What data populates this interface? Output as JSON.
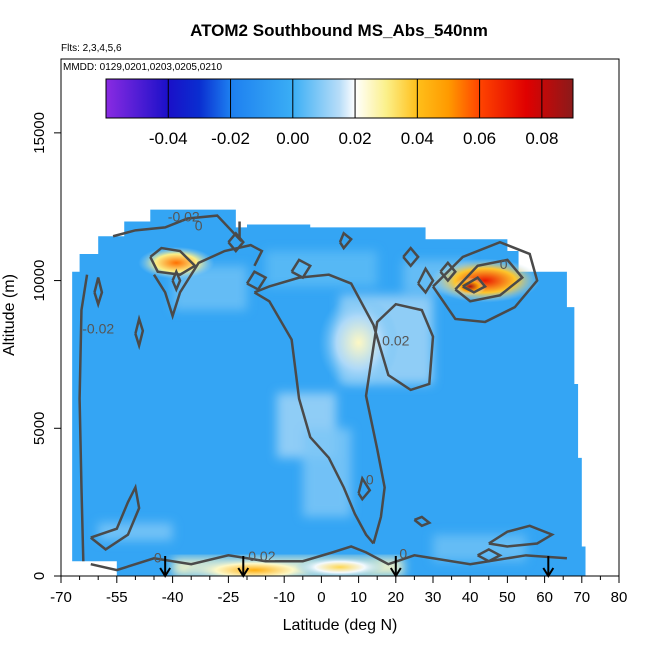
{
  "chart_data": {
    "type": "heatmap",
    "title": "ATOM2 Southbound MS_Abs_540nm",
    "subtitle_flights": "Flts: 2,3,4,5,6",
    "subtitle_dates": "MMDD: 0129,0201,0203,0205,0210",
    "xlabel": "Latitude (deg N)",
    "ylabel": "Altitude (m)",
    "xlim": [
      -70,
      80
    ],
    "ylim": [
      0,
      17500
    ],
    "x_ticks": [
      -70,
      -55,
      -40,
      -25,
      -10,
      0,
      10,
      20,
      30,
      40,
      50,
      60,
      70,
      80
    ],
    "x_tick_labels": [
      "-70",
      "-55",
      "-40",
      "-25",
      "-10",
      "0",
      "10",
      "20",
      "30",
      "40",
      "50",
      "60",
      "70",
      "80"
    ],
    "x_minor_ticks": [
      -65,
      -60,
      -50,
      -45,
      -35,
      -30,
      -20,
      -15,
      -5,
      5,
      15,
      25,
      35,
      45,
      55,
      65,
      75
    ],
    "y_ticks": [
      0,
      5000,
      10000,
      15000
    ],
    "y_tick_labels": [
      "0",
      "5000",
      "10000",
      "15000"
    ],
    "colorbar": {
      "range": [
        -0.06,
        0.09
      ],
      "ticks": [
        -0.04,
        -0.02,
        0.0,
        0.02,
        0.04,
        0.06,
        0.08
      ],
      "tick_labels": [
        "-0.04",
        "-0.02",
        "0.00",
        "0.02",
        "0.04",
        "0.06",
        "0.08"
      ],
      "stops": [
        {
          "v": -0.06,
          "c": "#8a2be2"
        },
        {
          "v": -0.04,
          "c": "#1a10c8"
        },
        {
          "v": -0.03,
          "c": "#0a2ed0"
        },
        {
          "v": -0.02,
          "c": "#1d7ff0"
        },
        {
          "v": 0.0,
          "c": "#3aaef5"
        },
        {
          "v": 0.015,
          "c": "#b8ddf8"
        },
        {
          "v": 0.02,
          "c": "#ffffff"
        },
        {
          "v": 0.03,
          "c": "#fbf08a"
        },
        {
          "v": 0.04,
          "c": "#ffbf1a"
        },
        {
          "v": 0.05,
          "c": "#ff9a00"
        },
        {
          "v": 0.06,
          "c": "#ff4400"
        },
        {
          "v": 0.075,
          "c": "#e00000"
        },
        {
          "v": 0.09,
          "c": "#8b1a1a"
        }
      ]
    },
    "sampled_latitude_range": [
      -67,
      70
    ],
    "background_value": -0.004,
    "high_regions": [
      {
        "label": "upper-troposphere high near 40-50 N",
        "lat": 44,
        "alt": 10000,
        "value": 0.07
      },
      {
        "label": "high near 40 N core",
        "lat": 40,
        "alt": 9800,
        "value": 0.085
      },
      {
        "label": "high near -40 N",
        "lat": -39,
        "alt": 10600,
        "value": 0.055
      },
      {
        "label": "mid-troposphere plume near 10 N",
        "lat": 10,
        "alt": 7900,
        "value": 0.025
      },
      {
        "label": "boundary layer near -20 N",
        "lat": -18,
        "alt": 200,
        "value": 0.045
      },
      {
        "label": "boundary layer near 5 N",
        "lat": 5,
        "alt": 300,
        "value": 0.035
      }
    ],
    "contour_labels": [
      {
        "text": "-0.02",
        "lat": -37,
        "alt": 12000
      },
      {
        "text": "0",
        "lat": -33,
        "alt": 11700
      },
      {
        "text": "-0.02",
        "lat": -60,
        "alt": 8200
      },
      {
        "text": "0.02",
        "lat": 20,
        "alt": 7800
      },
      {
        "text": "0",
        "lat": 13,
        "alt": 3100
      },
      {
        "text": "0",
        "lat": 49,
        "alt": 10400
      },
      {
        "text": "0",
        "lat": -44,
        "alt": 450
      },
      {
        "text": "0.02",
        "lat": -16,
        "alt": 500
      },
      {
        "text": "0",
        "lat": 22,
        "alt": 600
      }
    ],
    "flight_markers": {
      "symbol": "arrow-down",
      "latitudes": [
        -42,
        -21,
        20,
        61
      ]
    }
  }
}
